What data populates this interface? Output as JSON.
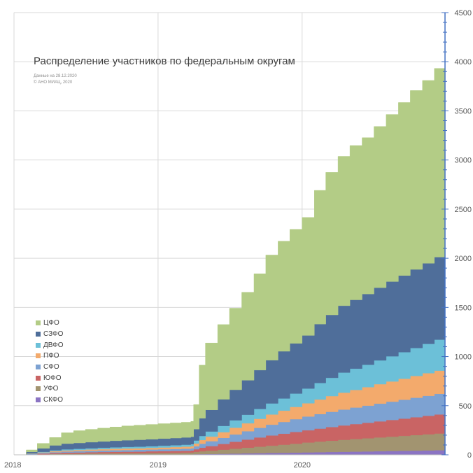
{
  "chart_data": {
    "type": "area",
    "title": "Распределение участников по федеральным округам",
    "notes": [
      "Данные на 28.12.2020",
      "© АНО МИАЦ, 2020"
    ],
    "stacked": true,
    "x_ticks": [
      "2018",
      "2019",
      "2020"
    ],
    "x_range": [
      "2018-01-01",
      "2020-12-28"
    ],
    "y_axis_side": "right",
    "y_range": [
      0,
      4500
    ],
    "y_ticks": [
      0,
      500,
      1000,
      1500,
      2000,
      2500,
      3000,
      3500,
      4000,
      4500
    ],
    "grid": true,
    "legend_position": "left-bottom",
    "x": [
      "2018-01-01",
      "2018-02-01",
      "2018-03-01",
      "2018-04-01",
      "2018-05-01",
      "2018-06-01",
      "2018-07-01",
      "2018-08-01",
      "2018-09-01",
      "2018-10-01",
      "2018-11-01",
      "2018-12-01",
      "2019-01-01",
      "2019-02-01",
      "2019-03-01",
      "2019-03-25",
      "2019-04-01",
      "2019-04-15",
      "2019-05-01",
      "2019-06-01",
      "2019-07-01",
      "2019-08-01",
      "2019-09-01",
      "2019-10-01",
      "2019-11-01",
      "2019-12-01",
      "2020-01-01",
      "2020-02-01",
      "2020-03-01",
      "2020-04-01",
      "2020-05-01",
      "2020-06-01",
      "2020-07-01",
      "2020-08-01",
      "2020-09-01",
      "2020-10-01",
      "2020-11-01",
      "2020-12-01",
      "2020-12-28"
    ],
    "series": [
      {
        "name": "СКФО",
        "color": "#8b74c3",
        "values": [
          0,
          1,
          2,
          3,
          3,
          3,
          4,
          4,
          4,
          4,
          4,
          5,
          5,
          5,
          5,
          6,
          7,
          8,
          9,
          11,
          13,
          15,
          17,
          19,
          21,
          23,
          25,
          27,
          29,
          31,
          33,
          35,
          37,
          39,
          41,
          43,
          45,
          47,
          48
        ]
      },
      {
        "name": "УФО",
        "color": "#a29470",
        "values": [
          0,
          2,
          4,
          6,
          8,
          9,
          10,
          11,
          12,
          13,
          13,
          14,
          15,
          16,
          17,
          18,
          22,
          28,
          34,
          42,
          50,
          58,
          66,
          74,
          82,
          90,
          100,
          108,
          115,
          122,
          128,
          134,
          140,
          146,
          152,
          158,
          164,
          170,
          175
        ]
      },
      {
        "name": "ЮФО",
        "color": "#c96464",
        "values": [
          0,
          3,
          6,
          9,
          11,
          12,
          13,
          14,
          15,
          15,
          16,
          17,
          18,
          19,
          20,
          21,
          28,
          37,
          46,
          58,
          70,
          82,
          94,
          104,
          112,
          120,
          125,
          132,
          139,
          146,
          152,
          158,
          164,
          170,
          176,
          182,
          188,
          194,
          198
        ]
      },
      {
        "name": "СФО",
        "color": "#7da2d2",
        "values": [
          0,
          3,
          7,
          10,
          12,
          13,
          14,
          15,
          16,
          17,
          18,
          18,
          19,
          20,
          21,
          22,
          30,
          40,
          50,
          62,
          74,
          86,
          98,
          110,
          120,
          130,
          140,
          148,
          155,
          162,
          168,
          174,
          180,
          186,
          192,
          198,
          204,
          210,
          214
        ]
      },
      {
        "name": "ПФО",
        "color": "#f3aa6c",
        "values": [
          0,
          3,
          6,
          9,
          11,
          12,
          13,
          14,
          15,
          16,
          16,
          17,
          18,
          19,
          20,
          21,
          29,
          38,
          47,
          58,
          69,
          80,
          92,
          104,
          115,
          125,
          135,
          148,
          160,
          172,
          180,
          188,
          198,
          206,
          214,
          222,
          230,
          236,
          240
        ]
      },
      {
        "name": "ДВФО",
        "color": "#6cc0d8",
        "values": [
          0,
          3,
          6,
          9,
          11,
          12,
          13,
          14,
          15,
          16,
          16,
          17,
          18,
          19,
          20,
          21,
          30,
          41,
          52,
          64,
          76,
          88,
          100,
          112,
          124,
          136,
          150,
          168,
          186,
          204,
          216,
          228,
          242,
          256,
          270,
          284,
          298,
          315,
          325
        ]
      },
      {
        "name": "СЗФО",
        "color": "#4f6e9a",
        "values": [
          0,
          15,
          35,
          50,
          58,
          60,
          62,
          64,
          66,
          68,
          70,
          71,
          72,
          73,
          74,
          75,
          115,
          180,
          220,
          270,
          310,
          350,
          395,
          440,
          480,
          510,
          540,
          600,
          640,
          680,
          700,
          720,
          740,
          760,
          780,
          800,
          820,
          840,
          850
        ]
      },
      {
        "name": "ЦФО",
        "color": "#b3cc86",
        "values": [
          0,
          20,
          50,
          80,
          110,
          125,
          130,
          135,
          140,
          145,
          148,
          150,
          152,
          153,
          154,
          156,
          250,
          540,
          680,
          760,
          830,
          895,
          980,
          1070,
          1120,
          1160,
          1200,
          1360,
          1450,
          1520,
          1570,
          1590,
          1640,
          1700,
          1760,
          1820,
          1860,
          1920,
          1955
        ]
      }
    ]
  }
}
